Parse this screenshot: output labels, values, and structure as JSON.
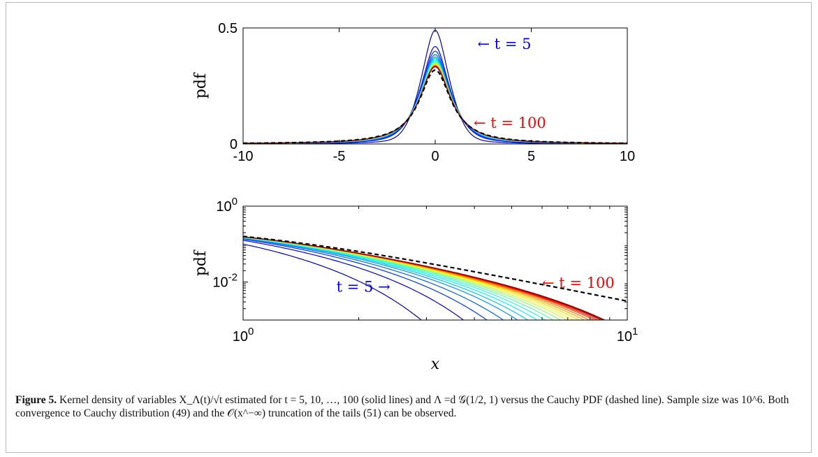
{
  "chart_data": [
    {
      "type": "line",
      "yscale": "linear",
      "xlim": [
        -10,
        10
      ],
      "ylim": [
        0,
        0.5
      ],
      "xticks": [
        "-10",
        "-5",
        "0",
        "5",
        "10"
      ],
      "yticks": [
        "0",
        "0.5"
      ],
      "xlabel": "",
      "ylabel": "pdf",
      "grid": false,
      "series_t": [
        5,
        10,
        15,
        20,
        25,
        30,
        35,
        40,
        45,
        50,
        55,
        60,
        65,
        70,
        75,
        80,
        85,
        90,
        95,
        100
      ],
      "peak_values": [
        0.49,
        0.42,
        0.4,
        0.385,
        0.375,
        0.368,
        0.362,
        0.357,
        0.353,
        0.349,
        0.346,
        0.344,
        0.342,
        0.34,
        0.338,
        0.336,
        0.335,
        0.334,
        0.333,
        0.332
      ],
      "reference": {
        "name": "Cauchy PDF",
        "style": "dashed",
        "color": "#000000",
        "peak": 0.318
      },
      "annotations": [
        {
          "text": "← t = 5",
          "color": "#0000ff",
          "x": 2.2,
          "y": 0.43
        },
        {
          "text": "← t = 100",
          "color": "#ff0000",
          "x": 2.0,
          "y": 0.09
        }
      ]
    },
    {
      "type": "line",
      "xscale": "log",
      "yscale": "log",
      "xlim": [
        1,
        10
      ],
      "ylim": [
        0.001,
        1
      ],
      "xticks": [
        "10^0",
        "10^1"
      ],
      "yticks": [
        "10^-2",
        "10^0"
      ],
      "xlabel": "x",
      "ylabel": "pdf",
      "grid": false,
      "series_t": [
        5,
        10,
        15,
        20,
        25,
        30,
        35,
        40,
        45,
        50,
        55,
        60,
        65,
        70,
        75,
        80,
        85,
        90,
        95,
        100
      ],
      "tail_cutoff_x": [
        2.2,
        3.0,
        3.6,
        4.1,
        4.6,
        5.0,
        5.4,
        5.8,
        6.2,
        6.6,
        7.0,
        7.4,
        7.8,
        8.2,
        8.6,
        9.0,
        9.3,
        9.6,
        9.8,
        10.0
      ],
      "reference": {
        "name": "Cauchy PDF",
        "style": "dashed",
        "color": "#000000"
      },
      "annotations": [
        {
          "text": "t = 5 →",
          "color": "#0000ff",
          "x": 1.75,
          "y": 0.0075
        },
        {
          "text": "← t = 100",
          "color": "#ff0000",
          "x": 6.0,
          "y": 0.0095
        }
      ]
    }
  ],
  "caption": {
    "label": "Figure 5.",
    "text": "Kernel density of variables X_Λ(t)/√t estimated for t = 5, 10, …, 100 (solid lines) and Λ =d 𝒢(1/2, 1) versus the Cauchy PDF (dashed line). Sample size was 10^6. Both convergence to Cauchy distribution (49) and the 𝒪(x^−∞) truncation of the tails (51) can be observed."
  }
}
